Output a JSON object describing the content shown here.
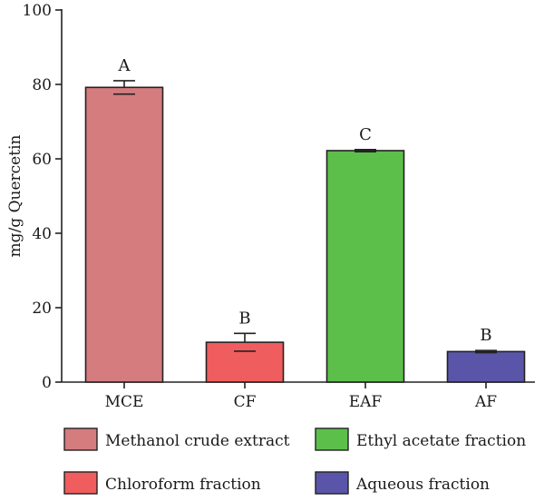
{
  "chart_data": {
    "type": "bar",
    "title": "",
    "xlabel": "",
    "ylabel": "mg/g Quercetin",
    "ylim": [
      0,
      100
    ],
    "yticks": [
      0,
      20,
      40,
      60,
      80,
      100
    ],
    "categories": [
      "MCE",
      "CF",
      "EAF",
      "AF"
    ],
    "values": [
      79.2,
      10.7,
      62.2,
      8.2
    ],
    "errors": [
      1.8,
      2.4,
      0.3,
      0.3
    ],
    "significance": [
      "A",
      "B",
      "C",
      "B"
    ],
    "colors": [
      "#d47c7e",
      "#f05d5e",
      "#5cbf4a",
      "#5a55a8"
    ],
    "grid": false,
    "legend": {
      "placement": "bottom",
      "entries": [
        {
          "label": "Methanol crude extract",
          "color": "#d47c7e"
        },
        {
          "label": "Ethyl acetate fraction",
          "color": "#5cbf4a"
        },
        {
          "label": "Chloroform fraction",
          "color": "#f05d5e"
        },
        {
          "label": "Aqueous fraction",
          "color": "#5a55a8"
        }
      ]
    }
  }
}
